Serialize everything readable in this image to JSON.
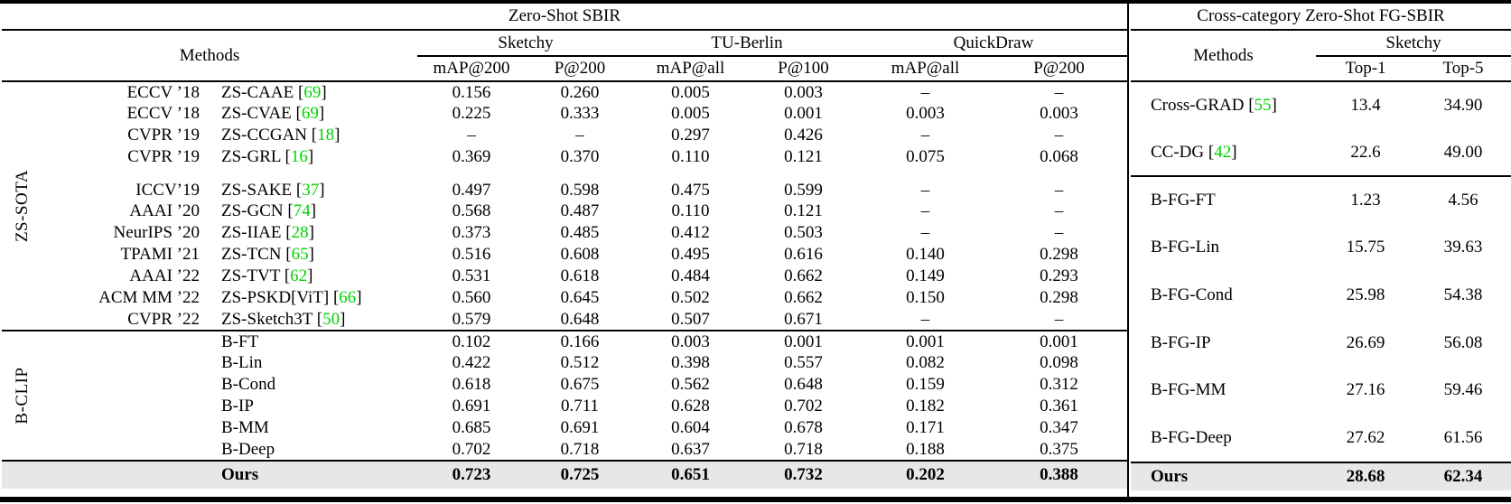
{
  "left": {
    "section_title": "Zero-Shot SBIR",
    "methods_label": "Methods",
    "col_groups": [
      {
        "label": "Sketchy",
        "cols": [
          "mAP@200",
          "P@200"
        ]
      },
      {
        "label": "TU-Berlin",
        "cols": [
          "mAP@all",
          "P@100"
        ]
      },
      {
        "label": "QuickDraw",
        "cols": [
          "mAP@all",
          "P@200"
        ]
      }
    ],
    "groups": [
      {
        "label": "ZS-SOTA",
        "rows": [
          {
            "venue": "ECCV ’18",
            "name": "ZS-CAAE",
            "ref": "69",
            "values": [
              "0.156",
              "0.260",
              "0.005",
              "0.003",
              "–",
              "–"
            ]
          },
          {
            "venue": "ECCV ’18",
            "name": "ZS-CVAE",
            "ref": "69",
            "values": [
              "0.225",
              "0.333",
              "0.005",
              "0.001",
              "0.003",
              "0.003"
            ]
          },
          {
            "venue": "CVPR ’19",
            "name": "ZS-CCGAN",
            "ref": "18",
            "values": [
              "–",
              "–",
              "0.297",
              "0.426",
              "–",
              "–"
            ]
          },
          {
            "venue": "CVPR ’19",
            "name": "ZS-GRL",
            "ref": "16",
            "values": [
              "0.369",
              "0.370",
              "0.110",
              "0.121",
              "0.075",
              "0.068"
            ]
          },
          {
            "venue": "ICCV’19",
            "name": "ZS-SAKE",
            "ref": "37",
            "gap_above": true,
            "values": [
              "0.497",
              "0.598",
              "0.475",
              "0.599",
              "–",
              "–"
            ]
          },
          {
            "venue": "AAAI ’20",
            "name": "ZS-GCN",
            "ref": "74",
            "values": [
              "0.568",
              "0.487",
              "0.110",
              "0.121",
              "–",
              "–"
            ]
          },
          {
            "venue": "NeurIPS ’20",
            "name": "ZS-IIAE",
            "ref": "28",
            "values": [
              "0.373",
              "0.485",
              "0.412",
              "0.503",
              "–",
              "–"
            ]
          },
          {
            "venue": "TPAMI ’21",
            "name": "ZS-TCN",
            "ref": "65",
            "values": [
              "0.516",
              "0.608",
              "0.495",
              "0.616",
              "0.140",
              "0.298"
            ]
          },
          {
            "venue": "AAAI ’22",
            "name": "ZS-TVT",
            "ref": "62",
            "values": [
              "0.531",
              "0.618",
              "0.484",
              "0.662",
              "0.149",
              "0.293"
            ]
          },
          {
            "venue": "ACM MM ’22",
            "name": "ZS-PSKD[ViT]",
            "ref": "66",
            "values": [
              "0.560",
              "0.645",
              "0.502",
              "0.662",
              "0.150",
              "0.298"
            ]
          },
          {
            "venue": "CVPR ’22",
            "name": "ZS-Sketch3T",
            "ref": "50",
            "values": [
              "0.579",
              "0.648",
              "0.507",
              "0.671",
              "–",
              "–"
            ]
          }
        ]
      },
      {
        "label": "B-CLIP",
        "rows": [
          {
            "venue": "",
            "name": "B-FT",
            "values": [
              "0.102",
              "0.166",
              "0.003",
              "0.001",
              "0.001",
              "0.001"
            ]
          },
          {
            "venue": "",
            "name": "B-Lin",
            "values": [
              "0.422",
              "0.512",
              "0.398",
              "0.557",
              "0.082",
              "0.098"
            ]
          },
          {
            "venue": "",
            "name": "B-Cond",
            "values": [
              "0.618",
              "0.675",
              "0.562",
              "0.648",
              "0.159",
              "0.312"
            ]
          },
          {
            "venue": "",
            "name": "B-IP",
            "values": [
              "0.691",
              "0.711",
              "0.628",
              "0.702",
              "0.182",
              "0.361"
            ]
          },
          {
            "venue": "",
            "name": "B-MM",
            "values": [
              "0.685",
              "0.691",
              "0.604",
              "0.678",
              "0.171",
              "0.347"
            ]
          },
          {
            "venue": "",
            "name": "B-Deep",
            "values": [
              "0.702",
              "0.718",
              "0.637",
              "0.718",
              "0.188",
              "0.375"
            ]
          }
        ]
      }
    ],
    "ours": {
      "label": "Ours",
      "values": [
        "0.723",
        "0.725",
        "0.651",
        "0.732",
        "0.202",
        "0.388"
      ]
    }
  },
  "right": {
    "section_title": "Cross-category Zero-Shot FG-SBIR",
    "methods_label": "Methods",
    "col_group": {
      "label": "Sketchy",
      "cols": [
        "Top-1",
        "Top-5"
      ]
    },
    "rows": [
      {
        "name": "Cross-GRAD",
        "ref": "55",
        "top1": "13.4",
        "top5": "34.90"
      },
      {
        "name": "CC-DG",
        "ref": "42",
        "top1": "22.6",
        "top5": "49.00",
        "rule_below": true
      },
      {
        "name": "B-FG-FT",
        "top1": "1.23",
        "top5": "4.56"
      },
      {
        "name": "B-FG-Lin",
        "top1": "15.75",
        "top5": "39.63"
      },
      {
        "name": "B-FG-Cond",
        "top1": "25.98",
        "top5": "54.38"
      },
      {
        "name": "B-FG-IP",
        "top1": "26.69",
        "top5": "56.08"
      },
      {
        "name": "B-FG-MM",
        "top1": "27.16",
        "top5": "59.46"
      },
      {
        "name": "B-FG-Deep",
        "top1": "27.62",
        "top5": "61.56"
      }
    ],
    "ours": {
      "label": "Ours",
      "top1": "28.68",
      "top5": "62.34"
    }
  },
  "colors": {
    "citation_green": "#00d300",
    "ours_row_bg": "#e7e7e7",
    "rule_black": "#000000"
  }
}
